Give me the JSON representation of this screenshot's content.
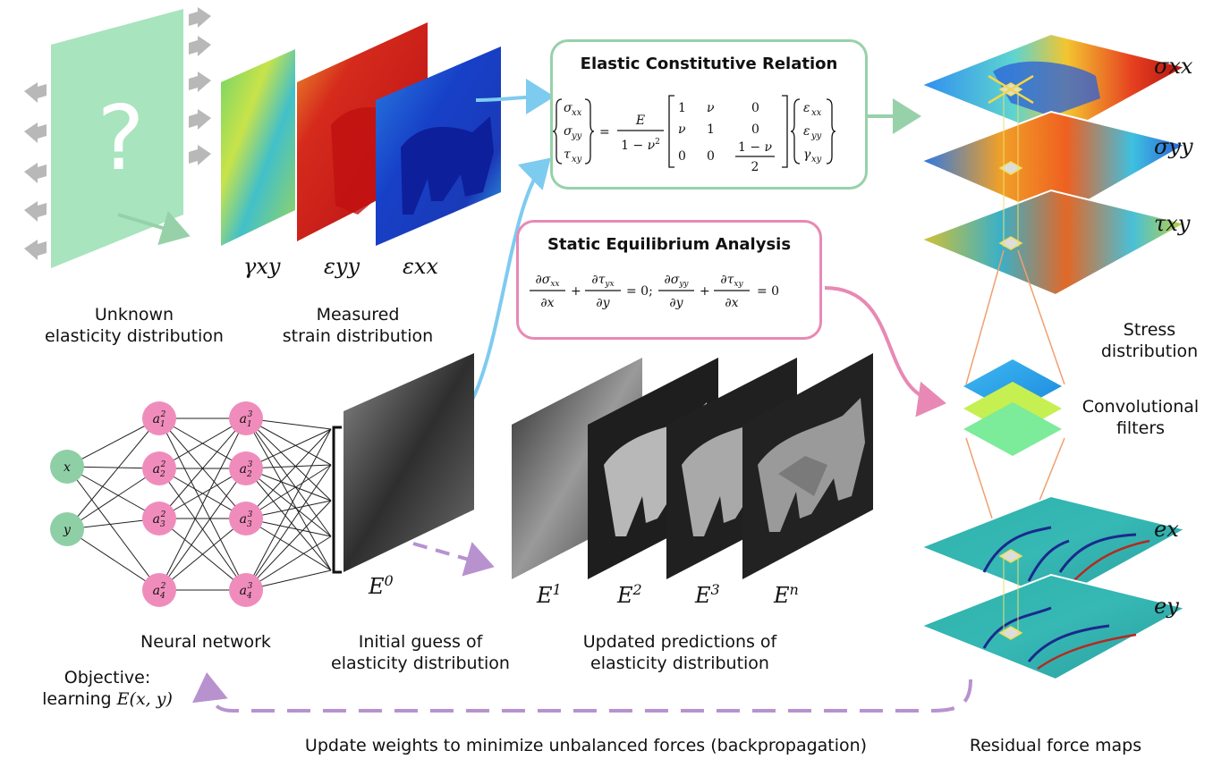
{
  "labels": {
    "unknown": "Unknown elasticity distribution",
    "unknown_l1": "Unknown",
    "unknown_l2": "elasticity distribution",
    "measured_l1": "Measured",
    "measured_l2": "strain distribution",
    "nn": "Neural network",
    "initial_l1": "Initial guess of",
    "initial_l2": "elasticity distribution",
    "updated_l1": "Updated predictions of",
    "updated_l2": "elasticity distribution",
    "objective_l1": "Objective:",
    "objective_l2": "learning",
    "objective_math": "E(x, y)",
    "stress_l1": "Stress",
    "stress_l2": "distribution",
    "conv_l1": "Convolutional",
    "conv_l2": "filters",
    "residual": "Residual force maps",
    "update_weights": "Update weights to minimize unbalanced forces (backpropagation)",
    "question_mark": "?"
  },
  "strain_labels": [
    "γxy",
    "εyy",
    "εxx"
  ],
  "stress_labels": [
    "σxx",
    "σyy",
    "τxy"
  ],
  "residual_labels": [
    "ex",
    "ey"
  ],
  "elasticity_labels": [
    "E0",
    "E1",
    "E2",
    "E3",
    "En"
  ],
  "neural_network": {
    "inputs": [
      "x",
      "y"
    ],
    "hidden_layer_1": [
      "a12",
      "a22",
      "a32",
      "a42"
    ],
    "hidden_layer_2": [
      "a13",
      "a23",
      "a33",
      "a43"
    ]
  },
  "elastic_box": {
    "title": "Elastic Constitutive Relation"
  },
  "equilibrium_box": {
    "title": "Static Equilibrium Analysis"
  },
  "colors": {
    "green": "#8fcfa6",
    "green_box": "#97d1a9",
    "pink_box": "#e889b5",
    "pink_node": "#f08cbc",
    "blue_arrow": "#7ecbf0",
    "purple_dashed": "#b892cf",
    "gray_arrow": "#b5b5b5",
    "orange_line": "#f0a070"
  }
}
